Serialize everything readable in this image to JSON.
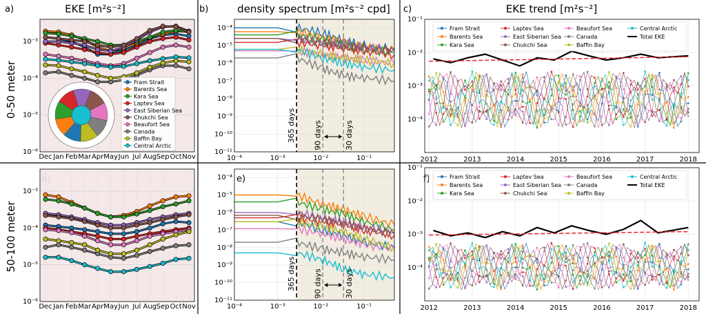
{
  "titles": {
    "col1": "EKE [m²s⁻²]",
    "col2": "density spectrum [m²s⁻² cpd]",
    "col3": "EKE trend [m²s⁻²]"
  },
  "row_labels": {
    "top": "0-50 meter",
    "bottom": "50-100 meter"
  },
  "panel_labels": [
    "a)",
    "b)",
    "c)",
    "d)",
    "e)",
    "f)"
  ],
  "annotations": {
    "d365": "365 days",
    "d90": "90 days",
    "d30": "30 days"
  },
  "colors": {
    "Fram Strait": "#1f77b4",
    "Barents Sea": "#ff7f0e",
    "Kara Sea": "#2ca02c",
    "Laptev Sea": "#d62728",
    "East Siberian Sea": "#9467bd",
    "Chukchi Sea": "#8c564b",
    "Beaufort Sea": "#e377c2",
    "Canada": "#7f7f7f",
    "Baffin Bay": "#bcbd22",
    "Central Arctic": "#17becf",
    "Total EKE": "#000000",
    "trend": "#e8232a"
  },
  "chart_data": [
    {
      "panel": "a",
      "type": "line",
      "title": "EKE [m²s⁻²]",
      "x": [
        "Dec",
        "Jan",
        "Feb",
        "Mar",
        "Apr",
        "May",
        "Jun",
        "Jul",
        "Aug",
        "Sep",
        "Oct",
        "Nov"
      ],
      "yscale": "log",
      "ylim": [
        1e-06,
        0.004
      ],
      "yticks": [
        "10⁻⁶",
        "10⁻⁵",
        "10⁻⁴",
        "10⁻³"
      ],
      "legend": "lower-right",
      "inset": "polar map of Arctic regions",
      "series": [
        {
          "name": "Fram Strait",
          "values": [
            0.0013,
            0.0012,
            0.001,
            0.0007,
            0.00045,
            0.00045,
            0.0006,
            0.0008,
            0.0012,
            0.0015,
            0.0016,
            0.0014
          ]
        },
        {
          "name": "Barents Sea",
          "values": [
            0.0019,
            0.0018,
            0.0015,
            0.0011,
            0.0007,
            0.00055,
            0.00065,
            0.0009,
            0.0013,
            0.0016,
            0.0019,
            0.0019
          ]
        },
        {
          "name": "Kara Sea",
          "values": [
            0.0017,
            0.0016,
            0.0014,
            0.0012,
            0.001,
            0.0008,
            0.0008,
            0.001,
            0.0013,
            0.0018,
            0.002,
            0.0018
          ]
        },
        {
          "name": "Laptev Sea",
          "values": [
            0.0009,
            0.0008,
            0.0007,
            0.0006,
            0.0005,
            0.00045,
            0.0005,
            0.0007,
            0.001,
            0.0012,
            0.0013,
            0.0011
          ]
        },
        {
          "name": "East Siberian Sea",
          "values": [
            0.001,
            0.001,
            0.0009,
            0.0008,
            0.0006,
            0.00055,
            0.0007,
            0.0011,
            0.0018,
            0.0025,
            0.0026,
            0.0019
          ]
        },
        {
          "name": "Chukchi Sea",
          "values": [
            0.0013,
            0.0012,
            0.0011,
            0.001,
            0.0008,
            0.0007,
            0.0008,
            0.0012,
            0.002,
            0.0026,
            0.0025,
            0.0018
          ]
        },
        {
          "name": "Beaufort Sea",
          "values": [
            0.00045,
            0.0004,
            0.00035,
            0.0003,
            0.00025,
            0.00022,
            0.00025,
            0.00035,
            0.0005,
            0.0007,
            0.0008,
            0.0007
          ]
        },
        {
          "name": "Canada",
          "values": [
            0.00014,
            0.00015,
            0.00012,
            0.0001,
            8e-05,
            8e-05,
            9e-05,
            0.00012,
            0.00017,
            0.00022,
            0.00022,
            0.00018
          ]
        },
        {
          "name": "Baffin Bay",
          "values": [
            0.00023,
            0.00022,
            0.00018,
            0.00015,
            0.00012,
            0.0001,
            0.00011,
            0.00014,
            0.0002,
            0.00026,
            0.0003,
            0.00028
          ]
        },
        {
          "name": "Central Arctic",
          "values": [
            0.00033,
            0.00031,
            0.00028,
            0.00025,
            0.00022,
            0.0002,
            0.00021,
            0.00025,
            0.0003,
            0.00034,
            0.00038,
            0.00036
          ]
        }
      ]
    },
    {
      "panel": "b",
      "type": "line",
      "title": "density spectrum [m²s⁻² cpd]",
      "xscale": "log",
      "yscale": "log",
      "xlim": [
        0.0001,
        0.5
      ],
      "ylim": [
        1e-11,
        0.0003
      ],
      "xticks": [
        "10⁻⁴",
        "10⁻³",
        "10⁻²",
        "10⁻¹"
      ],
      "yticks": [
        "10⁻¹¹",
        "10⁻¹⁰",
        "10⁻⁹",
        "10⁻⁸",
        "10⁻⁷",
        "10⁻⁶",
        "10⁻⁵",
        "10⁻⁴"
      ],
      "vlines": [
        {
          "x": 0.00274,
          "label": "365 days"
        },
        {
          "x": 0.0111,
          "label": "90 days"
        },
        {
          "x": 0.0333,
          "label": "30 days"
        }
      ],
      "series": [
        {
          "name": "Fram Strait",
          "values": [
            0.0001,
            0.0001,
            0.0001,
            5e-05,
            2e-05,
            1e-05,
            6e-06
          ]
        },
        {
          "name": "Barents Sea",
          "values": [
            6e-05,
            6e-05,
            6e-05,
            3e-05,
            1.5e-05,
            8e-06,
            5e-06
          ]
        },
        {
          "name": "Kara Sea",
          "values": [
            4e-05,
            4e-05,
            4e-05,
            2e-05,
            1e-05,
            6e-06,
            4e-06
          ]
        },
        {
          "name": "Laptev Sea",
          "values": [
            1.5e-05,
            1.5e-05,
            1.5e-05,
            1e-05,
            7e-06,
            5e-06,
            3e-06
          ]
        },
        {
          "name": "East Siberian Sea",
          "values": [
            2.5e-05,
            2.5e-05,
            2.5e-05,
            1.5e-05,
            1.2e-05,
            8e-06,
            6e-06
          ]
        },
        {
          "name": "Chukchi Sea",
          "values": [
            2.5e-05,
            2.5e-05,
            2.5e-05,
            1.5e-05,
            1e-05,
            7e-06,
            5e-06
          ]
        },
        {
          "name": "Beaufort Sea",
          "values": [
            5e-06,
            5e-06,
            5e-06,
            3e-06,
            2e-06,
            1.5e-06,
            1e-06
          ]
        },
        {
          "name": "Canada",
          "values": [
            2e-06,
            2e-06,
            2e-06,
            5e-07,
            2e-07,
            1.5e-07,
            1e-07
          ]
        },
        {
          "name": "Baffin Bay",
          "values": [
            6e-06,
            6e-06,
            6e-06,
            3e-06,
            2e-06,
            1.5e-06,
            1e-06
          ]
        },
        {
          "name": "Central Arctic",
          "values": [
            6e-06,
            6e-06,
            6e-06,
            2e-06,
            1e-06,
            6e-07,
            4e-07
          ]
        }
      ],
      "x": [
        0.0001,
        0.001,
        0.00274,
        0.0111,
        0.0333,
        0.1,
        0.5
      ]
    },
    {
      "panel": "c",
      "type": "line",
      "title": "EKE trend [m²s⁻²]",
      "xlim": [
        2012,
        2018.2
      ],
      "yscale": "log",
      "ylim": [
        1e-05,
        0.1
      ],
      "xticks": [
        "2012",
        "2013",
        "2014",
        "2015",
        "2016",
        "2017",
        "2018"
      ],
      "yticks": [
        "10⁻⁴",
        "10⁻³",
        "10⁻²",
        "10⁻¹"
      ],
      "legend": "top",
      "series": [
        {
          "name": "Total EKE",
          "values": [
            0.0065,
            0.005,
            0.007,
            0.009,
            0.006,
            0.004,
            0.007,
            0.006,
            0.011,
            0.008,
            0.006,
            0.007,
            0.009,
            0.007,
            0.008
          ]
        },
        {
          "name": "trend",
          "values": [
            0.0055,
            0.0075
          ]
        }
      ],
      "x_total": [
        2012.1,
        2012.5,
        2012.9,
        2013.3,
        2013.7,
        2014.1,
        2014.5,
        2014.9,
        2015.3,
        2015.7,
        2016.1,
        2016.5,
        2016.9,
        2017.3,
        2018.0
      ],
      "regional_band": [
        5e-05,
        0.003
      ]
    },
    {
      "panel": "d",
      "type": "line",
      "x": [
        "Dec",
        "Jan",
        "Feb",
        "Mar",
        "Apr",
        "May",
        "Jun",
        "Jul",
        "Aug",
        "Sep",
        "Oct",
        "Nov"
      ],
      "yscale": "log",
      "ylim": [
        1e-06,
        0.004
      ],
      "yticks": [
        "10⁻⁶",
        "10⁻⁵",
        "10⁻⁴",
        "10⁻³"
      ],
      "series": [
        {
          "name": "Fram Strait",
          "values": [
            0.00012,
            0.00011,
            0.0001,
            9e-05,
            8e-05,
            7e-05,
            7e-05,
            8e-05,
            0.0001,
            0.00013,
            0.00015,
            0.00014
          ]
        },
        {
          "name": "Barents Sea",
          "values": [
            0.0008,
            0.0007,
            0.0005,
            0.00035,
            0.00025,
            0.0002,
            0.00022,
            0.00028,
            0.0004,
            0.00055,
            0.0007,
            0.00075
          ]
        },
        {
          "name": "Kara Sea",
          "values": [
            0.0006,
            0.00055,
            0.00045,
            0.00035,
            0.00025,
            0.0002,
            0.0002,
            0.00024,
            0.0003,
            0.00038,
            0.00045,
            0.00055
          ]
        },
        {
          "name": "Laptev Sea",
          "values": [
            0.0001,
            9e-05,
            8e-05,
            7e-05,
            6e-05,
            5e-05,
            5e-05,
            6e-05,
            7e-05,
            8e-05,
            9e-05,
            0.0001
          ]
        },
        {
          "name": "East Siberian Sea",
          "values": [
            0.00025,
            0.00023,
            0.0002,
            0.00017,
            0.00014,
            0.00012,
            0.00012,
            0.00014,
            0.00017,
            0.0002,
            0.00023,
            0.00025
          ]
        },
        {
          "name": "Chukchi Sea",
          "values": [
            0.00022,
            0.0002,
            0.00018,
            0.00015,
            0.00012,
            0.0001,
            0.0001,
            0.00012,
            0.00014,
            0.00017,
            0.0002,
            0.00023
          ]
        },
        {
          "name": "Beaufort Sea",
          "values": [
            9e-05,
            8.5e-05,
            7.5e-05,
            6e-05,
            4.5e-05,
            3.5e-05,
            3.5e-05,
            4.5e-05,
            6e-05,
            7e-05,
            8e-05,
            9e-05
          ]
        },
        {
          "name": "Canada",
          "values": [
            3e-05,
            3.5e-05,
            3e-05,
            2.5e-05,
            2e-05,
            1.6e-05,
            1.5e-05,
            1.8e-05,
            2.3e-05,
            2.8e-05,
            3.3e-05,
            3.5e-05
          ]
        },
        {
          "name": "Baffin Bay",
          "values": [
            5e-05,
            4.5e-05,
            4e-05,
            3.5e-05,
            2.5e-05,
            2e-05,
            2e-05,
            2.5e-05,
            3.5e-05,
            5e-05,
            6.5e-05,
            8e-05
          ]
        },
        {
          "name": "Central Arctic",
          "values": [
            1.6e-05,
            1.6e-05,
            1.3e-05,
            1e-05,
            8e-06,
            6.5e-06,
            6.5e-06,
            7.5e-06,
            9e-06,
            1.1e-05,
            1.4e-05,
            1.5e-05
          ]
        }
      ]
    },
    {
      "panel": "e",
      "type": "line",
      "xscale": "log",
      "yscale": "log",
      "xlim": [
        0.0001,
        0.5
      ],
      "ylim": [
        1e-11,
        0.0003
      ],
      "xticks": [
        "10⁻⁴",
        "10⁻³",
        "10⁻²",
        "10⁻¹"
      ],
      "yticks": [
        "10⁻¹¹",
        "10⁻¹⁰",
        "10⁻⁹",
        "10⁻⁸",
        "10⁻⁷",
        "10⁻⁶",
        "10⁻⁵",
        "10⁻⁴"
      ],
      "vlines": [
        {
          "x": 0.00274,
          "label": "365 days"
        },
        {
          "x": 0.0111,
          "label": "90 days"
        },
        {
          "x": 0.0333,
          "label": "30 days"
        }
      ],
      "x": [
        0.0001,
        0.001,
        0.00274,
        0.0111,
        0.0333,
        0.1,
        0.5
      ],
      "series": [
        {
          "name": "Fram Strait",
          "values": [
            3e-07,
            3e-07,
            3e-07,
            1e-07,
            5e-08,
            2e-08,
            1e-08
          ]
        },
        {
          "name": "Barents Sea",
          "values": [
            1e-05,
            1e-05,
            1e-05,
            3e-06,
            1.5e-06,
            6e-07,
            2e-07
          ]
        },
        {
          "name": "Kara Sea",
          "values": [
            4e-06,
            4e-06,
            4e-06,
            1.5e-06,
            8e-07,
            3e-07,
            1e-07
          ]
        },
        {
          "name": "Laptev Sea",
          "values": [
            5e-07,
            5e-07,
            5e-07,
            3e-07,
            2e-07,
            1e-07,
            5e-08
          ]
        },
        {
          "name": "East Siberian Sea",
          "values": [
            1e-06,
            1e-06,
            1e-06,
            5e-07,
            3e-07,
            1.5e-07,
            8e-08
          ]
        },
        {
          "name": "Chukchi Sea",
          "values": [
            7e-07,
            7e-07,
            7e-07,
            4e-07,
            2.5e-07,
            1.2e-07,
            6e-08
          ]
        },
        {
          "name": "Beaufort Sea",
          "values": [
            1.2e-07,
            1.2e-07,
            1.2e-07,
            6e-08,
            3e-08,
            1.5e-08,
            8e-09
          ]
        },
        {
          "name": "Canada",
          "values": [
            2e-08,
            2e-08,
            2e-08,
            8e-09,
            5e-09,
            3e-09,
            2e-09
          ]
        },
        {
          "name": "Baffin Bay",
          "values": [
            3e-07,
            3e-07,
            3e-07,
            1.5e-07,
            8e-08,
            3e-08,
            1e-08
          ]
        },
        {
          "name": "Central Arctic",
          "values": [
            5e-09,
            5e-09,
            5e-09,
            2e-09,
            6e-10,
            3e-10,
            2e-10
          ]
        }
      ]
    },
    {
      "panel": "f",
      "type": "line",
      "xlim": [
        2012,
        2018.2
      ],
      "yscale": "log",
      "ylim": [
        1e-05,
        0.1
      ],
      "xticks": [
        "2012",
        "2013",
        "2014",
        "2015",
        "2016",
        "2017",
        "2018"
      ],
      "yticks": [
        "10⁻⁴",
        "10⁻³",
        "10⁻²",
        "10⁻¹"
      ],
      "legend": "top",
      "series": [
        {
          "name": "Total EKE",
          "values": [
            0.0013,
            0.0009,
            0.0011,
            0.0008,
            0.0012,
            0.0009,
            0.0016,
            0.0011,
            0.0018,
            0.0013,
            0.001,
            0.0014,
            0.0026,
            0.0011,
            0.0016
          ]
        },
        {
          "name": "trend",
          "values": [
            0.00095,
            0.0012
          ]
        }
      ],
      "x_total": [
        2012.1,
        2012.5,
        2012.9,
        2013.3,
        2013.7,
        2014.1,
        2014.5,
        2014.9,
        2015.3,
        2015.7,
        2016.1,
        2016.5,
        2016.9,
        2017.3,
        2018.0
      ],
      "regional_band": [
        2e-05,
        0.0006
      ]
    }
  ]
}
